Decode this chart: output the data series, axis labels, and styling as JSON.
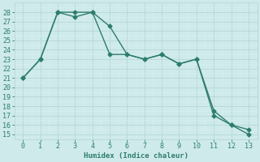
{
  "line1_x": [
    0,
    1,
    2,
    3,
    4,
    5,
    6,
    7,
    8,
    9,
    10,
    11,
    12,
    13
  ],
  "line1_y": [
    21,
    23,
    28,
    28,
    28,
    26.5,
    23.5,
    23,
    23.5,
    22.5,
    23,
    17,
    16,
    15.5
  ],
  "line2_x": [
    0,
    1,
    2,
    3,
    4,
    5,
    6,
    7,
    8,
    9,
    10,
    11,
    12,
    13
  ],
  "line2_y": [
    21,
    23,
    28,
    27.5,
    28,
    23.5,
    23.5,
    23,
    23.5,
    22.5,
    23,
    17.5,
    16,
    15
  ],
  "line_color": "#2e7d6e",
  "bg_color": "#ceeaea",
  "grid_major_color": "#b8d8d8",
  "grid_minor_color": "#daf0f0",
  "xlabel": "Humidex (Indice chaleur)",
  "xlim": [
    -0.5,
    13.5
  ],
  "ylim": [
    14.5,
    29.0
  ],
  "yticks": [
    15,
    16,
    17,
    18,
    19,
    20,
    21,
    22,
    23,
    24,
    25,
    26,
    27,
    28
  ],
  "xticks": [
    0,
    1,
    2,
    3,
    4,
    5,
    6,
    7,
    8,
    9,
    10,
    11,
    12,
    13
  ],
  "marker": "D",
  "marker_size": 2.5,
  "line_width": 1.0,
  "font_size": 6.5
}
